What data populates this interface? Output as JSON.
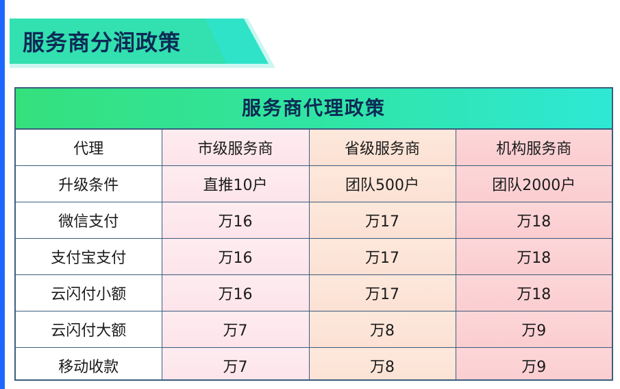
{
  "section_title": "服务商分润政策",
  "table": {
    "title": "服务商代理政策",
    "header_row": [
      "代理",
      "市级服务商",
      "省级服务商",
      "机构服务商"
    ],
    "rows": [
      [
        "升级条件",
        "直推10户",
        "团队500户",
        "团队2000户"
      ],
      [
        "微信支付",
        "万16",
        "万17",
        "万18"
      ],
      [
        "支付宝支付",
        "万16",
        "万17",
        "万18"
      ],
      [
        "云闪付小额",
        "万16",
        "万17",
        "万18"
      ],
      [
        "云闪付大额",
        "万7",
        "万8",
        "万9"
      ],
      [
        "移动收款",
        "万7",
        "万8",
        "万9"
      ]
    ]
  },
  "colors": {
    "accent_blue": "#1d67ff",
    "header_green": "#35e07c",
    "header_teal": "#2ee8d6",
    "text_dark": "#0d2a55",
    "city_column": "#fdecf0",
    "province_column": "#fde8dc",
    "institution_column": "#fcd6d8"
  }
}
